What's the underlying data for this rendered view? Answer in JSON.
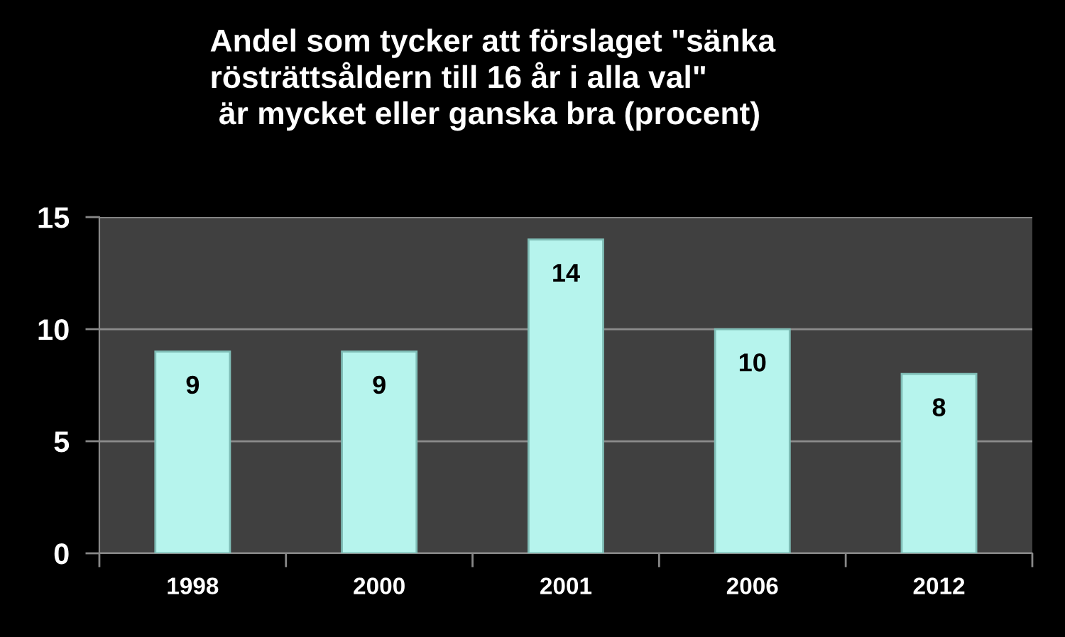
{
  "chart_data": {
    "type": "bar",
    "title": "Andel som tycker att förslaget \"sänka\nrösträttsåldern till 16 år i alla val\"\n är mycket eller ganska bra (procent)",
    "categories": [
      "1998",
      "2000",
      "2001",
      "2006",
      "2012"
    ],
    "values": [
      9,
      9,
      14,
      10,
      8
    ],
    "color": "#b6f4ed",
    "ylim": [
      0,
      15
    ],
    "yticks": [
      0,
      5,
      10,
      15
    ],
    "grid": "y",
    "data_labels": true
  }
}
